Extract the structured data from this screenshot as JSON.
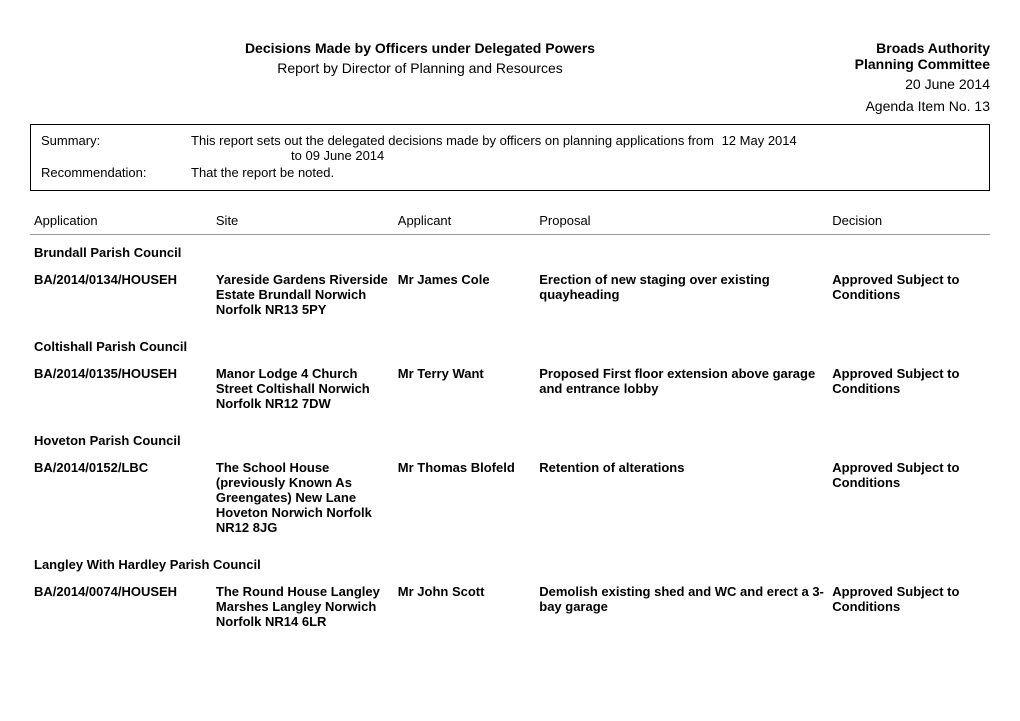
{
  "header": {
    "authority": "Broads Authority",
    "committee": "Planning Committee",
    "title": "Decisions Made by Officers under Delegated Powers",
    "subtitle": "Report by Director of Planning and Resources",
    "date": "20 June 2014",
    "agenda_label": "Agenda Item No.",
    "agenda_no": "13"
  },
  "summary": {
    "summary_label": "Summary:",
    "summary_text": "This report sets out the delegated decisions made by officers on planning applications from",
    "from_date": "12 May 2014",
    "to_label": "to",
    "to_date": "09 June 2014",
    "rec_label": "Recommendation:",
    "rec_text": "That the report be noted."
  },
  "columns": {
    "application": "Application",
    "site": "Site",
    "applicant": "Applicant",
    "proposal": "Proposal",
    "decision": "Decision"
  },
  "groups": [
    {
      "council": "Brundall Parish Council",
      "rows": [
        {
          "application": "BA/2014/0134/HOUSEH",
          "site": "Yareside Gardens Riverside Estate Brundall Norwich Norfolk NR13 5PY",
          "applicant": "Mr James Cole",
          "proposal": "Erection of new staging over existing quayheading",
          "decision": "Approved Subject to Conditions"
        }
      ]
    },
    {
      "council": "Coltishall Parish Council",
      "rows": [
        {
          "application": "BA/2014/0135/HOUSEH",
          "site": "Manor Lodge 4 Church Street Coltishall Norwich Norfolk NR12 7DW",
          "applicant": "Mr Terry Want",
          "proposal": "Proposed First floor extension above garage and entrance lobby",
          "decision": "Approved Subject to Conditions"
        }
      ]
    },
    {
      "council": "Hoveton Parish Council",
      "rows": [
        {
          "application": "BA/2014/0152/LBC",
          "site": "The School House (previously Known As Greengates) New Lane Hoveton Norwich Norfolk NR12 8JG",
          "applicant": "Mr Thomas Blofeld",
          "proposal": "Retention of alterations",
          "decision": "Approved Subject to Conditions"
        }
      ]
    },
    {
      "council": "Langley With Hardley Parish Council",
      "rows": [
        {
          "application": "BA/2014/0074/HOUSEH",
          "site": "The Round House Langley Marshes Langley Norwich Norfolk NR14 6LR",
          "applicant": "Mr John Scott",
          "proposal": "Demolish existing shed and WC and erect a 3-bay garage",
          "decision": "Approved Subject to Conditions"
        }
      ]
    }
  ]
}
